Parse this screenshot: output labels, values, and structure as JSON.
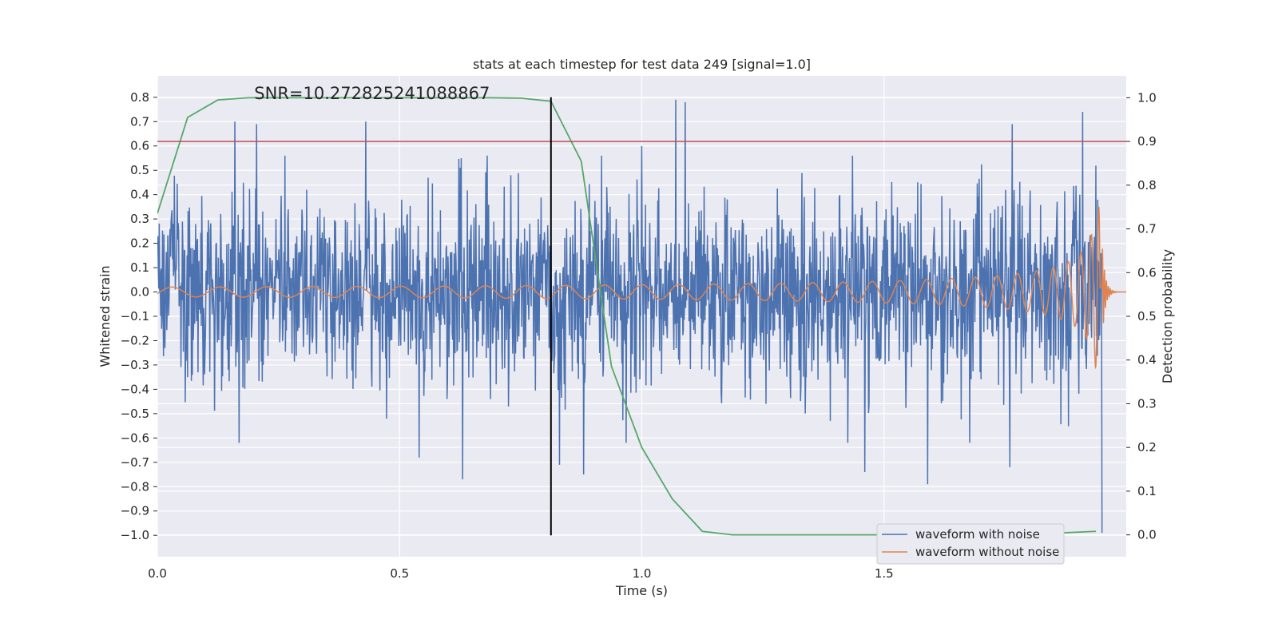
{
  "chart_data": {
    "type": "line",
    "title": "stats at each timestep for test data 249 [signal=1.0]",
    "xlabel": "Time (s)",
    "ylabel": "Whitened strain",
    "y2label": "Detection probability",
    "annotation": "SNR=10.272825241088867",
    "xlim": [
      0.0,
      2.0
    ],
    "ylim": [
      -1.088,
      0.888
    ],
    "y2lim": [
      -0.05,
      1.05
    ],
    "x_ticks": [
      0.0,
      0.5,
      1.0,
      1.5
    ],
    "x_tick_labels": [
      "0.0",
      "0.5",
      "1.0",
      "1.5"
    ],
    "y_ticks": [
      -1.0,
      -0.9,
      -0.8,
      -0.7,
      -0.6,
      -0.5,
      -0.4,
      -0.3,
      -0.2,
      -0.1,
      0.0,
      0.1,
      0.2,
      0.3,
      0.4,
      0.5,
      0.6,
      0.7,
      0.8
    ],
    "y_tick_labels": [
      "−1.0",
      "−0.9",
      "−0.8",
      "−0.7",
      "−0.6",
      "−0.5",
      "−0.4",
      "−0.3",
      "−0.2",
      "−0.1",
      "0.0",
      "0.1",
      "0.2",
      "0.3",
      "0.4",
      "0.5",
      "0.6",
      "0.7",
      "0.8"
    ],
    "y2_ticks": [
      0.0,
      0.1,
      0.2,
      0.3,
      0.4,
      0.5,
      0.6,
      0.7,
      0.8,
      0.9,
      1.0
    ],
    "y2_tick_labels": [
      "0.0",
      "0.1",
      "0.2",
      "0.3",
      "0.4",
      "0.5",
      "0.6",
      "0.7",
      "0.8",
      "0.9",
      "1.0"
    ],
    "grid": true,
    "legend_position": "lower-right",
    "series": [
      {
        "name": "waveform with noise",
        "color": "#4c72b0",
        "noise_std": 0.2,
        "x_range": [
          0.0,
          1.95
        ],
        "num_points": 2000,
        "peaks": [
          {
            "x": 0.16,
            "y": 0.7
          },
          {
            "x": 0.205,
            "y": 0.69
          },
          {
            "x": 0.43,
            "y": 0.7
          },
          {
            "x": 1.07,
            "y": 0.79
          },
          {
            "x": 1.09,
            "y": 0.78
          },
          {
            "x": 1.0,
            "y": 0.6
          },
          {
            "x": 1.91,
            "y": 0.74
          },
          {
            "x": 1.765,
            "y": 0.69
          },
          {
            "x": 1.95,
            "y": 0.62
          },
          {
            "x": 0.63,
            "y": -0.77
          },
          {
            "x": 0.54,
            "y": -0.68
          },
          {
            "x": 1.46,
            "y": -0.74
          },
          {
            "x": 1.59,
            "y": -0.79
          },
          {
            "x": 1.76,
            "y": -0.72
          },
          {
            "x": 1.95,
            "y": -0.99
          },
          {
            "x": 0.83,
            "y": -0.71
          },
          {
            "x": 0.88,
            "y": -0.75
          }
        ]
      },
      {
        "name": "waveform without noise",
        "color": "#dd8452",
        "x_range": [
          0.0,
          2.0
        ],
        "merger_x": 1.95,
        "base_amplitude": 0.02,
        "peak_amplitude": 0.35,
        "start_frequency_hz": 10
      }
    ],
    "probability_curve": {
      "color": "#55a868",
      "axis": "y2",
      "x": [
        0.0,
        0.0625,
        0.125,
        0.1875,
        0.25,
        0.3125,
        0.375,
        0.4375,
        0.5,
        0.5625,
        0.625,
        0.6875,
        0.75,
        0.8125,
        0.875,
        0.9375,
        1.0,
        1.0625,
        1.125,
        1.1875,
        1.25,
        1.3125,
        1.375,
        1.4375,
        1.5,
        1.5625,
        1.625,
        1.6875,
        1.75,
        1.8125,
        1.875,
        1.9375
      ],
      "y": [
        0.735,
        0.955,
        0.995,
        1.0,
        1.0,
        1.0,
        1.0,
        1.0,
        1.0,
        1.0,
        1.0,
        1.0,
        0.999,
        0.992,
        0.855,
        0.385,
        0.2,
        0.083,
        0.008,
        0.0,
        0.0,
        0.0,
        0.0,
        0.0,
        0.0,
        0.0,
        0.0,
        0.0,
        0.0,
        0.0,
        0.005,
        0.008
      ]
    },
    "threshold_line": {
      "y2": 0.9,
      "color": "#c44e52"
    },
    "vertical_marker": {
      "x": 0.8125,
      "color": "#000000"
    }
  }
}
